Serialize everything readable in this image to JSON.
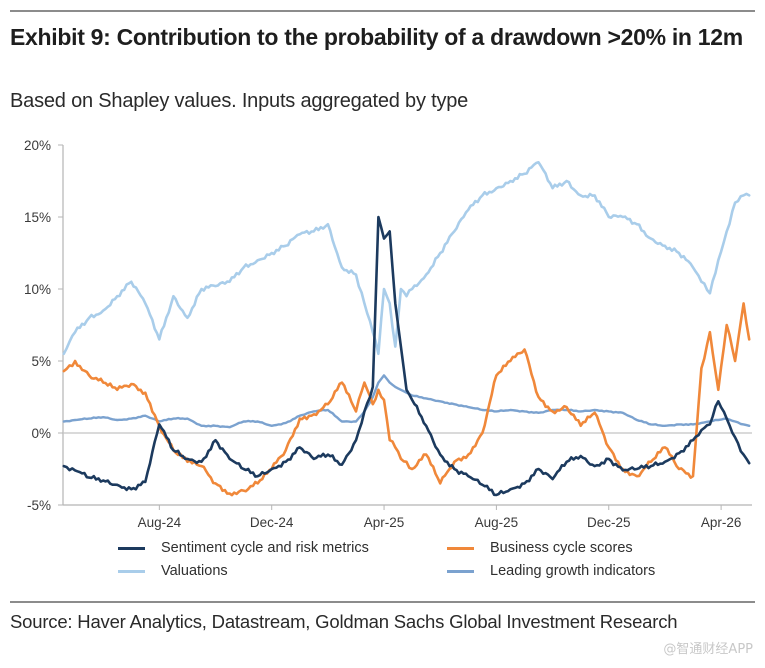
{
  "header": {
    "title": "Exhibit 9: Contribution to the probability of a drawdown >20% in 12m",
    "subtitle": "Based on Shapley values. Inputs aggregated by type"
  },
  "footer": {
    "source": "Source: Haver Analytics, Datastream, Goldman Sachs Global Investment Research",
    "watermark": "@智通财经APP"
  },
  "chart_data": {
    "type": "line",
    "title": "Exhibit 9: Contribution to the probability of a drawdown >20% in 12m",
    "subtitle": "Based on Shapley values. Inputs aggregated by type",
    "xlabel": "",
    "ylabel": "",
    "ylim": [
      -5,
      20
    ],
    "yticks": [
      -5,
      0,
      5,
      10,
      15,
      20
    ],
    "ytick_labels": [
      "-5%",
      "0%",
      "5%",
      "10%",
      "15%",
      "20%"
    ],
    "xlim_months": [
      -3.43,
      21.1
    ],
    "xticks": [
      {
        "label": "Aug-24",
        "month": 0
      },
      {
        "label": "Dec-24",
        "month": 4
      },
      {
        "label": "Apr-25",
        "month": 8
      },
      {
        "label": "Aug-25",
        "month": 12
      },
      {
        "label": "Dec-25",
        "month": 16
      },
      {
        "label": "Apr-26",
        "month": 20
      }
    ],
    "x_unit": "months since Aug-24",
    "grid": false,
    "zero_line": true,
    "legend_position": "bottom",
    "x": [
      -3.4,
      -3.0,
      -2.5,
      -2.0,
      -1.5,
      -1.0,
      -0.5,
      0.0,
      0.5,
      1.0,
      1.5,
      2.0,
      2.5,
      3.0,
      3.5,
      4.0,
      4.5,
      5.0,
      5.5,
      6.0,
      6.5,
      7.0,
      7.3,
      7.6,
      7.8,
      8.0,
      8.2,
      8.4,
      8.6,
      8.8,
      9.0,
      9.5,
      10.0,
      10.5,
      11.0,
      11.5,
      12.0,
      12.5,
      13.0,
      13.5,
      14.0,
      14.5,
      15.0,
      15.5,
      16.0,
      16.5,
      17.0,
      17.5,
      18.0,
      18.5,
      19.0,
      19.3,
      19.6,
      19.9,
      20.2,
      20.5,
      20.8,
      21.0
    ],
    "series": [
      {
        "name": "Sentiment cycle and risk metrics",
        "color": "#1c3a5e",
        "values": [
          -2.3,
          -2.6,
          -3.1,
          -3.3,
          -3.6,
          -3.9,
          -3.4,
          0.6,
          -1.2,
          -1.8,
          -2.0,
          -0.5,
          -1.8,
          -2.5,
          -3.0,
          -2.5,
          -2.0,
          -1.0,
          -1.8,
          -1.5,
          -2.2,
          -0.5,
          1.5,
          3.2,
          15.0,
          13.5,
          14.0,
          9.0,
          6.0,
          3.0,
          2.3,
          0.5,
          -1.5,
          -2.5,
          -3.0,
          -3.6,
          -4.3,
          -3.9,
          -3.5,
          -2.5,
          -3.2,
          -2.0,
          -1.6,
          -2.3,
          -1.8,
          -2.6,
          -2.5,
          -2.3,
          -2.0,
          -1.4,
          -0.5,
          0.2,
          0.6,
          2.2,
          1.0,
          -0.3,
          -1.5,
          -2.1
        ]
      },
      {
        "name": "Business cycle scores",
        "color": "#f0883a",
        "values": [
          4.3,
          5.0,
          4.0,
          3.5,
          3.0,
          3.4,
          2.8,
          0.5,
          -1.2,
          -2.0,
          -2.3,
          -3.5,
          -4.2,
          -4.0,
          -3.5,
          -2.5,
          -1.2,
          1.0,
          1.3,
          2.0,
          3.5,
          1.5,
          3.5,
          2.0,
          3.0,
          2.3,
          -0.5,
          -1.0,
          -1.8,
          -2.0,
          -2.5,
          -1.5,
          -3.5,
          -2.0,
          -1.5,
          0.0,
          4.0,
          5.0,
          5.8,
          2.5,
          1.5,
          1.8,
          0.5,
          1.4,
          -1.0,
          -2.5,
          -3.0,
          -2.0,
          -1.0,
          -2.5,
          -3.0,
          4.5,
          7.0,
          3.0,
          7.5,
          5.0,
          9.0,
          6.5
        ]
      },
      {
        "name": "Valuations",
        "color": "#a9cdea",
        "values": [
          5.5,
          7.0,
          8.0,
          8.5,
          9.5,
          10.5,
          9.0,
          6.5,
          9.5,
          8.0,
          10.0,
          10.2,
          10.5,
          11.5,
          12.0,
          12.5,
          13.0,
          13.8,
          14.0,
          14.5,
          11.5,
          11.0,
          9.0,
          7.0,
          5.5,
          10.0,
          9.0,
          6.0,
          10.0,
          9.5,
          10.0,
          11.0,
          12.5,
          14.0,
          15.5,
          16.5,
          17.0,
          17.5,
          18.0,
          18.8,
          17.0,
          17.5,
          16.5,
          16.5,
          15.0,
          15.0,
          14.5,
          13.5,
          13.0,
          12.5,
          11.5,
          10.5,
          9.7,
          12.0,
          14.0,
          16.0,
          16.5,
          16.5
        ]
      },
      {
        "name": "Leading growth indicators",
        "color": "#7ba2cf",
        "values": [
          0.8,
          0.9,
          1.0,
          1.1,
          0.9,
          1.0,
          1.2,
          0.8,
          1.0,
          1.0,
          0.5,
          0.5,
          0.4,
          0.8,
          0.8,
          0.5,
          0.7,
          1.2,
          1.5,
          1.6,
          0.8,
          0.8,
          1.5,
          2.5,
          3.5,
          4.0,
          3.5,
          3.2,
          3.0,
          2.8,
          2.6,
          2.4,
          2.2,
          2.0,
          1.8,
          1.6,
          1.5,
          1.6,
          1.5,
          1.4,
          1.6,
          1.6,
          1.5,
          1.6,
          1.5,
          1.4,
          0.9,
          0.6,
          0.5,
          0.6,
          0.6,
          0.7,
          0.8,
          0.9,
          1.0,
          0.8,
          0.6,
          0.5
        ]
      }
    ]
  },
  "legend": {
    "items": [
      {
        "label": "Sentiment cycle and risk metrics",
        "color": "#1c3a5e"
      },
      {
        "label": "Business cycle scores",
        "color": "#f0883a"
      },
      {
        "label": "Valuations",
        "color": "#a9cdea"
      },
      {
        "label": "Leading growth indicators",
        "color": "#7ba2cf"
      }
    ]
  }
}
